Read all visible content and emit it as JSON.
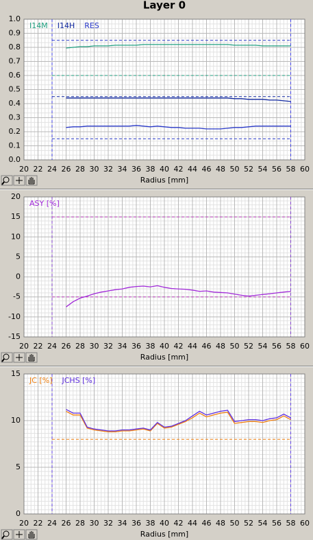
{
  "title": "Layer 0",
  "chart_data": [
    {
      "type": "line",
      "xlabel": "Radius [mm]",
      "legend": "upper left",
      "grid": true,
      "x": [
        26,
        27,
        28,
        29,
        30,
        31,
        32,
        33,
        34,
        35,
        36,
        37,
        38,
        39,
        40,
        41,
        42,
        43,
        44,
        45,
        46,
        47,
        48,
        49,
        50,
        51,
        52,
        53,
        54,
        55,
        56,
        57,
        58
      ],
      "series": [
        {
          "name": "I14M",
          "color": "#20a080",
          "values": [
            0.795,
            0.8,
            0.805,
            0.805,
            0.81,
            0.81,
            0.81,
            0.815,
            0.815,
            0.815,
            0.815,
            0.82,
            0.82,
            0.82,
            0.82,
            0.82,
            0.82,
            0.82,
            0.82,
            0.82,
            0.82,
            0.82,
            0.82,
            0.82,
            0.815,
            0.815,
            0.815,
            0.815,
            0.81,
            0.81,
            0.81,
            0.81,
            0.81
          ]
        },
        {
          "name": "I14H",
          "color": "#1028a0",
          "values": [
            0.44,
            0.44,
            0.44,
            0.44,
            0.44,
            0.44,
            0.44,
            0.44,
            0.44,
            0.44,
            0.44,
            0.44,
            0.44,
            0.44,
            0.44,
            0.44,
            0.44,
            0.44,
            0.44,
            0.44,
            0.44,
            0.44,
            0.44,
            0.44,
            0.435,
            0.435,
            0.43,
            0.43,
            0.43,
            0.425,
            0.425,
            0.42,
            0.415
          ]
        },
        {
          "name": "RES",
          "color": "#2838c8",
          "values": [
            0.23,
            0.235,
            0.235,
            0.24,
            0.24,
            0.24,
            0.24,
            0.24,
            0.24,
            0.24,
            0.245,
            0.24,
            0.235,
            0.24,
            0.235,
            0.23,
            0.23,
            0.225,
            0.225,
            0.225,
            0.22,
            0.22,
            0.22,
            0.225,
            0.23,
            0.23,
            0.235,
            0.24,
            0.24,
            0.24,
            0.24,
            0.24,
            0.24
          ]
        }
      ],
      "hlines": [
        {
          "value": 0.85,
          "color": "#2838c8"
        },
        {
          "value": 0.6,
          "color": "#20a080"
        },
        {
          "value": 0.45,
          "color": "#1028a0"
        },
        {
          "value": 0.15,
          "color": "#2838c8"
        }
      ],
      "vlines": [
        24,
        58
      ],
      "vline_color": "#4040e0",
      "xlim": [
        20,
        60
      ],
      "xticks": [
        20,
        22,
        24,
        26,
        28,
        30,
        32,
        34,
        36,
        38,
        40,
        42,
        44,
        46,
        48,
        50,
        52,
        54,
        56,
        58,
        60
      ],
      "ylim": [
        0,
        1
      ],
      "yticks": [
        {
          "value": 0,
          "label": "0.0"
        },
        0.1,
        0.2,
        0.3,
        0.4,
        0.5,
        0.6,
        0.7,
        0.8,
        0.9,
        {
          "value": 1,
          "label": "1.0"
        }
      ]
    },
    {
      "type": "line",
      "xlabel": "Radius [mm]",
      "legend": "upper left",
      "grid": true,
      "x": [
        26,
        27,
        28,
        29,
        30,
        31,
        32,
        33,
        34,
        35,
        36,
        37,
        38,
        39,
        40,
        41,
        42,
        43,
        44,
        45,
        46,
        47,
        48,
        49,
        50,
        51,
        52,
        53,
        54,
        55,
        56,
        57,
        58
      ],
      "series": [
        {
          "name": "ASY [%]",
          "color": "#a028d8",
          "values": [
            -7.5,
            -6.2,
            -5.3,
            -4.8,
            -4.2,
            -3.8,
            -3.5,
            -3.2,
            -3.0,
            -2.6,
            -2.4,
            -2.3,
            -2.5,
            -2.2,
            -2.6,
            -2.9,
            -3.0,
            -3.1,
            -3.3,
            -3.6,
            -3.5,
            -3.8,
            -3.9,
            -4.0,
            -4.3,
            -4.6,
            -4.8,
            -4.6,
            -4.4,
            -4.2,
            -4.0,
            -3.8,
            -3.6
          ]
        }
      ],
      "hlines": [
        {
          "value": 15,
          "color": "#c040c0"
        },
        {
          "value": -5,
          "color": "#c040c0"
        }
      ],
      "vlines": [
        24,
        58
      ],
      "vline_color": "#8040c8",
      "xlim": [
        20,
        60
      ],
      "xticks": [
        20,
        22,
        24,
        26,
        28,
        30,
        32,
        34,
        36,
        38,
        40,
        42,
        44,
        46,
        48,
        50,
        52,
        54,
        56,
        58,
        60
      ],
      "ylim": [
        -15,
        20
      ],
      "yticks": [
        -15,
        -10,
        -5,
        0,
        5,
        10,
        15,
        20
      ]
    },
    {
      "type": "line",
      "xlabel": "Radius [mm]",
      "legend": "upper left",
      "grid": true,
      "x": [
        26,
        27,
        28,
        29,
        30,
        31,
        32,
        33,
        34,
        35,
        36,
        37,
        38,
        39,
        40,
        41,
        42,
        43,
        44,
        45,
        46,
        47,
        48,
        49,
        50,
        51,
        52,
        53,
        54,
        55,
        56,
        57,
        58
      ],
      "series": [
        {
          "name": "JC [%]",
          "color": "#f08010",
          "values": [
            11.0,
            10.6,
            10.6,
            9.2,
            9.0,
            8.9,
            8.8,
            8.8,
            8.9,
            8.9,
            9.0,
            9.1,
            8.9,
            9.7,
            9.2,
            9.3,
            9.6,
            9.9,
            10.3,
            10.8,
            10.4,
            10.6,
            10.8,
            10.9,
            9.7,
            9.8,
            9.9,
            9.9,
            9.8,
            10.0,
            10.1,
            10.5,
            10.1
          ]
        },
        {
          "name": "JCHS [%]",
          "color": "#6030e0",
          "values": [
            11.2,
            10.8,
            10.8,
            9.3,
            9.1,
            9.0,
            8.9,
            8.9,
            9.0,
            9.0,
            9.1,
            9.2,
            9.0,
            9.8,
            9.3,
            9.4,
            9.7,
            10.0,
            10.5,
            11.0,
            10.6,
            10.8,
            11.0,
            11.1,
            9.9,
            10.0,
            10.1,
            10.1,
            10.0,
            10.2,
            10.3,
            10.7,
            10.3
          ]
        }
      ],
      "hlines": [
        {
          "value": 8,
          "color": "#f08010"
        }
      ],
      "vlines": [
        24,
        58
      ],
      "vline_color": "#6040e0",
      "xlim": [
        20,
        60
      ],
      "xticks": [
        20,
        22,
        24,
        26,
        28,
        30,
        32,
        34,
        36,
        38,
        40,
        42,
        44,
        46,
        48,
        50,
        52,
        54,
        56,
        58,
        60
      ],
      "ylim": [
        0,
        15
      ],
      "yticks": [
        0,
        5,
        10,
        15
      ]
    }
  ]
}
